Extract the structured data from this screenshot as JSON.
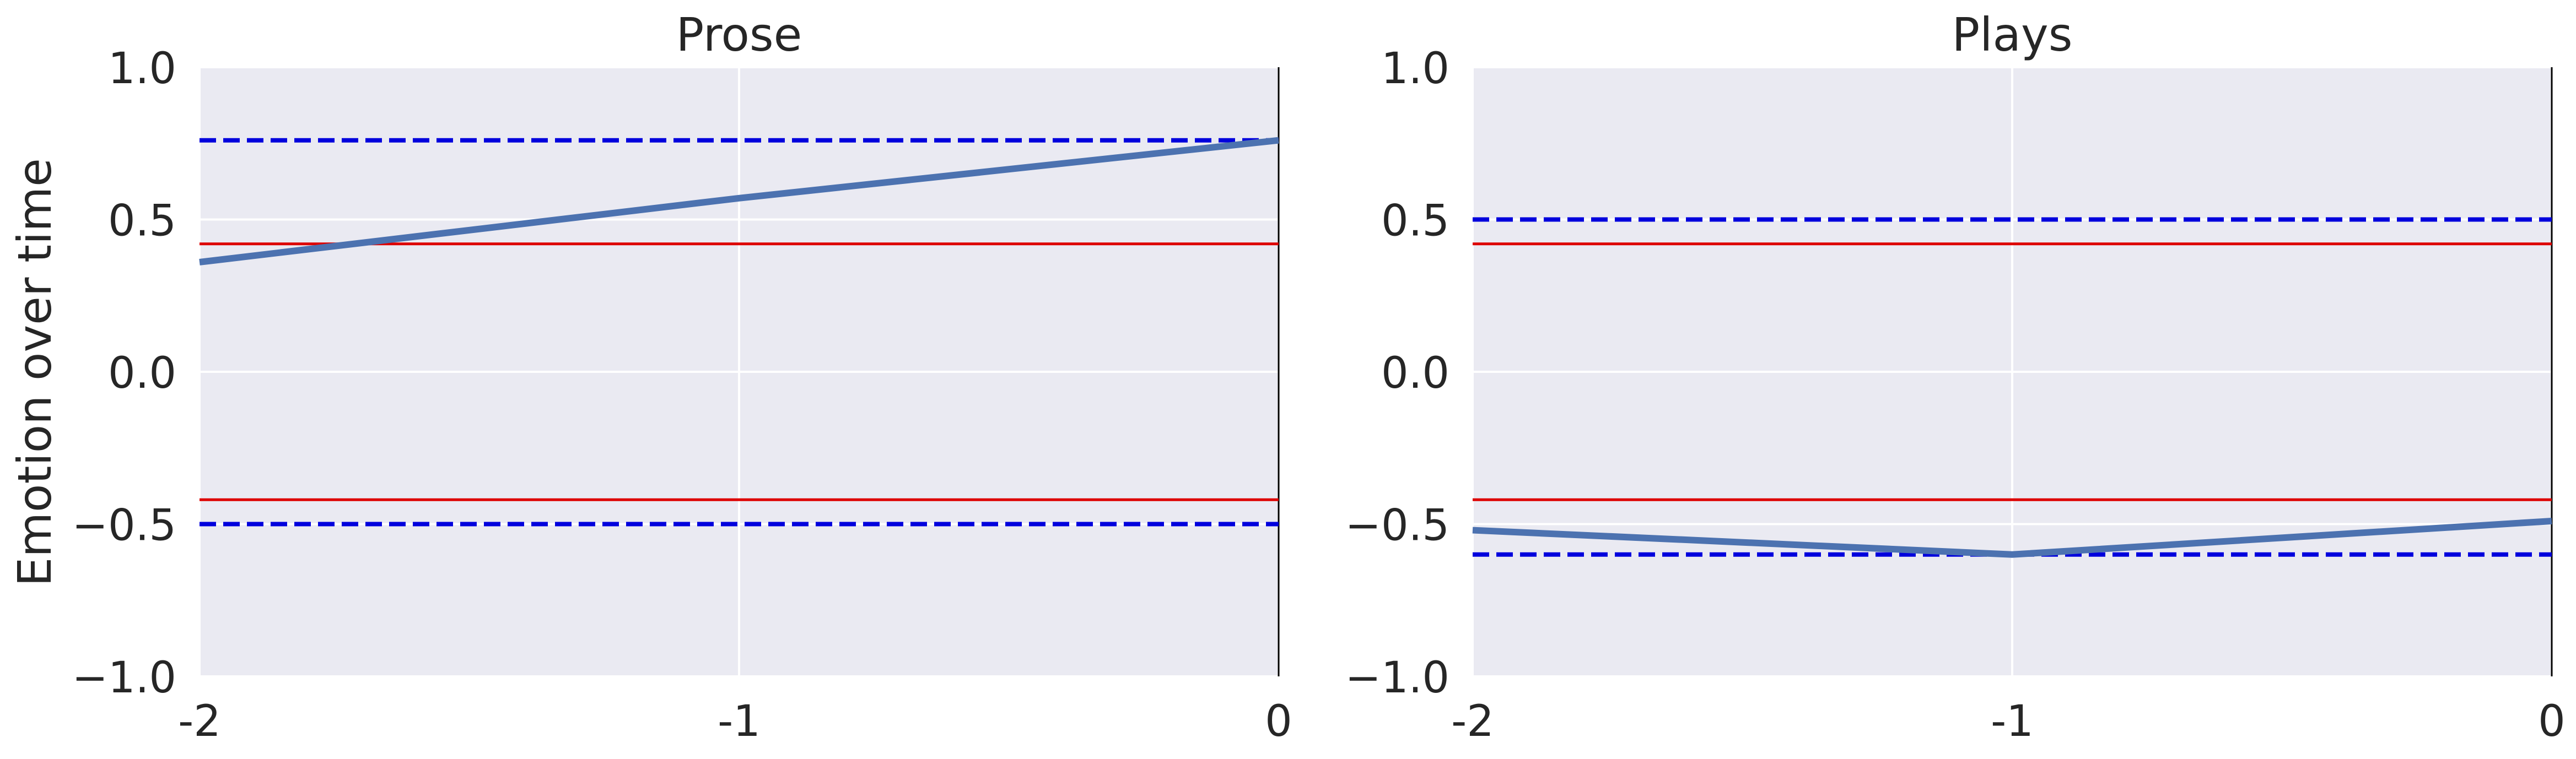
{
  "figure": {
    "ylabel": "Emotion over time"
  },
  "chart_data": [
    {
      "type": "line",
      "title": "Prose",
      "xlabel": "",
      "ylabel": "Emotion over time",
      "x": [
        -2,
        -1,
        0
      ],
      "xticks": [
        -2,
        -1,
        0
      ],
      "xtick_labels": [
        "-2",
        "-1",
        "0"
      ],
      "ylim": [
        -1.0,
        1.0
      ],
      "yticks": [
        -1.0,
        -0.5,
        0.0,
        0.5,
        1.0
      ],
      "ytick_labels": [
        "−1.0",
        "−0.5",
        "0.0",
        "0.5",
        "1.0"
      ],
      "grid": true,
      "series": [
        {
          "values": [
            0.36,
            0.57,
            0.76
          ],
          "color": "#4c72b0"
        }
      ],
      "hlines": [
        {
          "y": 0.76,
          "color": "#0000dd",
          "style": "dashed"
        },
        {
          "y": -0.5,
          "color": "#0000dd",
          "style": "dashed"
        },
        {
          "y": 0.42,
          "color": "#dd0000",
          "style": "solid"
        },
        {
          "y": -0.42,
          "color": "#dd0000",
          "style": "solid"
        }
      ],
      "vline_at_x": 0
    },
    {
      "type": "line",
      "title": "Plays",
      "xlabel": "",
      "ylabel": "",
      "x": [
        -2,
        -1,
        0
      ],
      "xticks": [
        -2,
        -1,
        0
      ],
      "xtick_labels": [
        "-2",
        "-1",
        "0"
      ],
      "ylim": [
        -1.0,
        1.0
      ],
      "yticks": [
        -1.0,
        -0.5,
        0.0,
        0.5,
        1.0
      ],
      "ytick_labels": [
        "−1.0",
        "−0.5",
        "0.0",
        "0.5",
        "1.0"
      ],
      "grid": true,
      "series": [
        {
          "values": [
            -0.52,
            -0.6,
            -0.49
          ],
          "color": "#4c72b0"
        }
      ],
      "hlines": [
        {
          "y": 0.5,
          "color": "#0000dd",
          "style": "dashed"
        },
        {
          "y": -0.6,
          "color": "#0000dd",
          "style": "dashed"
        },
        {
          "y": 0.42,
          "color": "#dd0000",
          "style": "solid"
        },
        {
          "y": -0.42,
          "color": "#dd0000",
          "style": "solid"
        }
      ],
      "vline_at_x": 0
    }
  ],
  "colors": {
    "plot_background": "#eaeaf2",
    "grid": "#ffffff",
    "series": "#4c72b0",
    "threshold_blue": "#0000dd",
    "threshold_red": "#dd0000"
  }
}
